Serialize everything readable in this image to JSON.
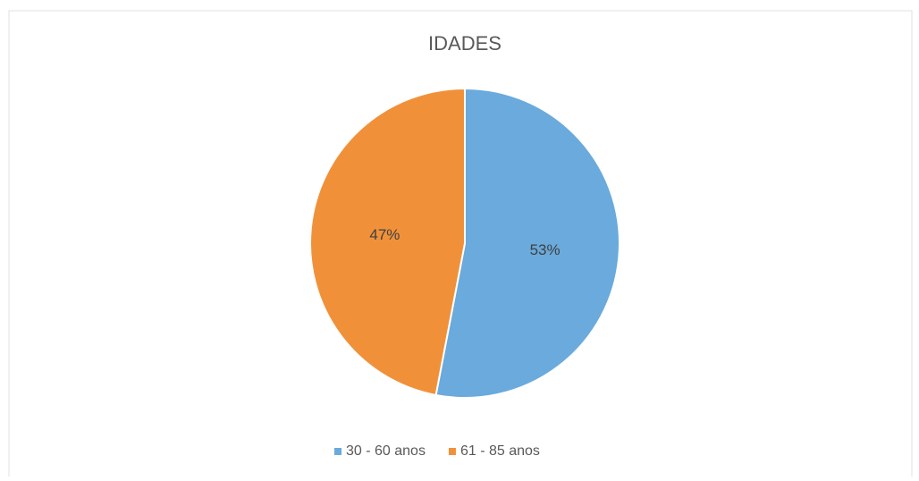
{
  "chart_data": {
    "type": "pie",
    "title": "IDADES",
    "categories": [
      "30 - 60 anos",
      "61 - 85 anos"
    ],
    "values": [
      53,
      47
    ],
    "value_labels": [
      "53%",
      "47%"
    ],
    "colors": [
      "#6aaadc",
      "#f0913a"
    ],
    "legend": "bottom"
  }
}
